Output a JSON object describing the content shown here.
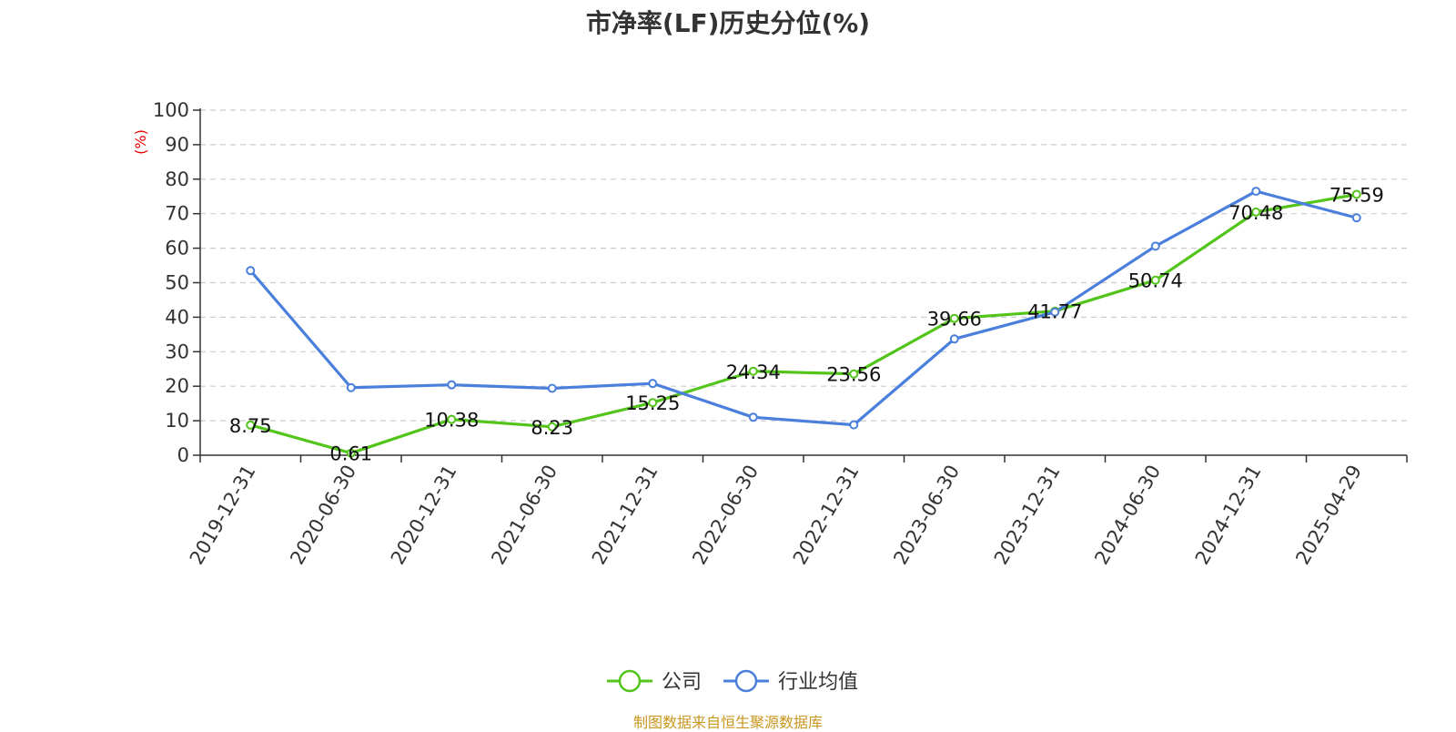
{
  "chart_data": {
    "type": "line",
    "title": "市净率(LF)历史分位(%)",
    "ylabel": "(%)",
    "xlabel": "",
    "ylim": [
      0,
      100
    ],
    "yticks": [
      0,
      10,
      20,
      30,
      40,
      50,
      60,
      70,
      80,
      90,
      100
    ],
    "grid": true,
    "legend_position": "bottom",
    "categories": [
      "2019-12-31",
      "2020-06-30",
      "2020-12-31",
      "2021-06-30",
      "2021-12-31",
      "2022-06-30",
      "2022-12-31",
      "2023-06-30",
      "2023-12-31",
      "2024-06-30",
      "2024-12-31",
      "2025-04-29"
    ],
    "series": [
      {
        "name": "公司",
        "color": "#52c41a",
        "values": [
          8.75,
          0.61,
          10.38,
          8.23,
          15.25,
          24.34,
          23.56,
          39.66,
          41.77,
          50.74,
          70.48,
          75.59
        ],
        "labels": [
          "8.75",
          "0.61",
          "10.38",
          "8.23",
          "15.25",
          "24.34",
          "23.56",
          "39.66",
          "41.77",
          "50.74",
          "70.48",
          "75.59"
        ]
      },
      {
        "name": "行业均值",
        "color": "#4a7fdc",
        "values": [
          53.5,
          19.6,
          20.4,
          19.4,
          20.8,
          11.0,
          8.8,
          33.7,
          41.5,
          60.6,
          76.5,
          68.8
        ]
      }
    ],
    "source": "制图数据来自恒生聚源数据库"
  }
}
